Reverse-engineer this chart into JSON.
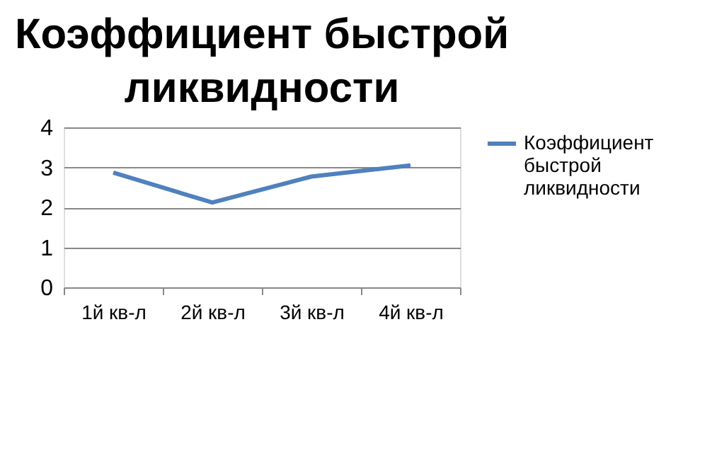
{
  "chart_data": {
    "type": "line",
    "title": "Коэффициент быстрой ликвидности",
    "categories": [
      "1й кв-л",
      "2й кв-л",
      "3й кв-л",
      "4й кв-л"
    ],
    "series": [
      {
        "name": "Коэффициент быстрой ликвидности",
        "color": "#4f81bd",
        "values": [
          2.87,
          2.12,
          2.77,
          3.05
        ]
      }
    ],
    "ylim": [
      0,
      4
    ],
    "yticks": [
      0,
      1,
      2,
      3,
      4
    ],
    "grid": "y",
    "legend": "right",
    "marker": "none",
    "line_style": "solid"
  }
}
